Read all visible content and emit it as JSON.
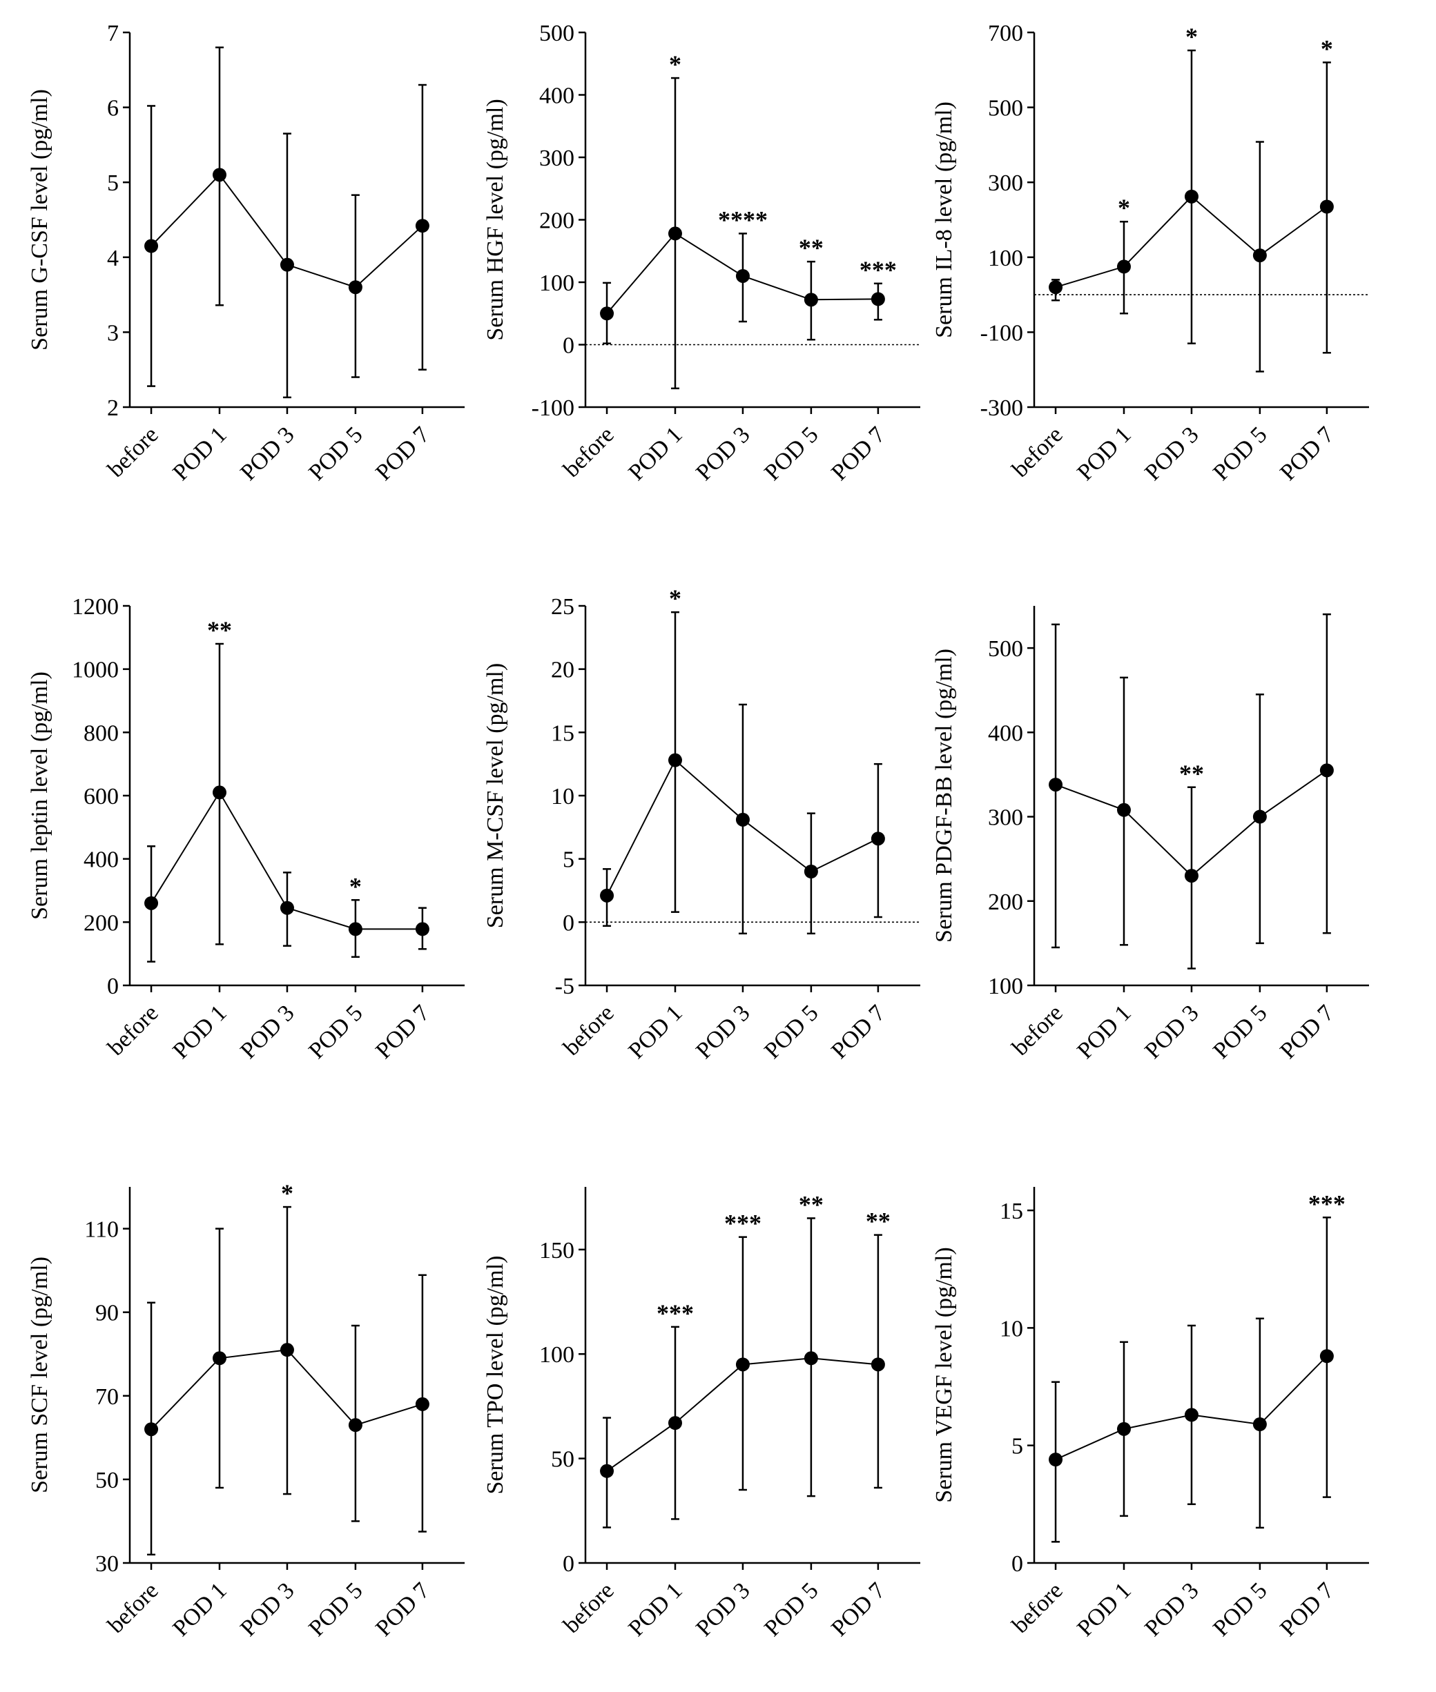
{
  "colors": {
    "ink": "#000000"
  },
  "chart_data": [
    {
      "type": "line",
      "title": "",
      "xlabel": "",
      "ylabel": "Serum G-CSF level (pg/ml)",
      "categories": [
        "before",
        "POD 1",
        "POD 3",
        "POD 5",
        "POD 7"
      ],
      "ylim": [
        2,
        7
      ],
      "yticks": [
        2,
        3,
        4,
        5,
        6,
        7
      ],
      "zero_line": false,
      "series": [
        {
          "name": "G-CSF",
          "values": [
            4.15,
            5.1,
            3.9,
            3.6,
            4.42
          ],
          "err_low": [
            2.28,
            3.36,
            2.13,
            2.4,
            2.5
          ],
          "err_high": [
            6.02,
            6.8,
            5.65,
            4.83,
            6.3
          ],
          "significance": [
            "",
            "",
            "",
            "",
            ""
          ]
        }
      ]
    },
    {
      "type": "line",
      "title": "",
      "xlabel": "",
      "ylabel": "Serum HGF level (pg/ml)",
      "categories": [
        "before",
        "POD 1",
        "POD 3",
        "POD 5",
        "POD 7"
      ],
      "ylim": [
        -100,
        500
      ],
      "yticks": [
        -100,
        0,
        100,
        200,
        300,
        400,
        500
      ],
      "zero_line": true,
      "series": [
        {
          "name": "HGF",
          "values": [
            50,
            178,
            110,
            72,
            73
          ],
          "err_low": [
            2,
            -70,
            37,
            8,
            40
          ],
          "err_high": [
            99,
            427,
            178,
            133,
            98
          ],
          "significance": [
            "",
            "*",
            "****",
            "**",
            "***"
          ]
        }
      ]
    },
    {
      "type": "line",
      "title": "",
      "xlabel": "",
      "ylabel": "Serum IL-8 level (pg/ml)",
      "categories": [
        "before",
        "POD 1",
        "POD 3",
        "POD 5",
        "POD 7"
      ],
      "ylim": [
        -300,
        700
      ],
      "yticks": [
        -300,
        -100,
        100,
        300,
        500,
        700
      ],
      "zero_line": true,
      "series": [
        {
          "name": "IL-8",
          "values": [
            20,
            75,
            262,
            105,
            235
          ],
          "err_low": [
            -15,
            -50,
            -130,
            -205,
            -155
          ],
          "err_high": [
            40,
            195,
            652,
            408,
            620
          ],
          "significance": [
            "",
            "*",
            "*",
            "",
            "*"
          ]
        }
      ]
    },
    {
      "type": "line",
      "title": "",
      "xlabel": "",
      "ylabel": "Serum leptin level (pg/ml)",
      "categories": [
        "before",
        "POD 1",
        "POD 3",
        "POD 5",
        "POD 7"
      ],
      "ylim": [
        0,
        1200
      ],
      "yticks": [
        0,
        200,
        400,
        600,
        800,
        1000,
        1200
      ],
      "zero_line": false,
      "series": [
        {
          "name": "leptin",
          "values": [
            260,
            610,
            245,
            178,
            178
          ],
          "err_low": [
            75,
            130,
            125,
            90,
            115
          ],
          "err_high": [
            440,
            1080,
            357,
            270,
            245
          ],
          "significance": [
            "",
            "**",
            "",
            "*",
            ""
          ]
        }
      ]
    },
    {
      "type": "line",
      "title": "",
      "xlabel": "",
      "ylabel": "Serum M-CSF level (pg/ml)",
      "categories": [
        "before",
        "POD 1",
        "POD 3",
        "POD 5",
        "POD 7"
      ],
      "ylim": [
        -5,
        25
      ],
      "yticks": [
        -5,
        0,
        5,
        10,
        15,
        20,
        25
      ],
      "zero_line": true,
      "series": [
        {
          "name": "M-CSF",
          "values": [
            2.1,
            12.8,
            8.1,
            4.0,
            6.6
          ],
          "err_low": [
            -0.3,
            0.8,
            -0.9,
            -0.9,
            0.4
          ],
          "err_high": [
            4.2,
            24.5,
            17.2,
            8.6,
            12.5
          ],
          "significance": [
            "",
            "*",
            "",
            "",
            ""
          ]
        }
      ]
    },
    {
      "type": "line",
      "title": "",
      "xlabel": "",
      "ylabel": "Serum PDGF-BB level (pg/ml)",
      "categories": [
        "before",
        "POD 1",
        "POD 3",
        "POD 5",
        "POD 7"
      ],
      "ylim": [
        100,
        550
      ],
      "yticks": [
        100,
        200,
        300,
        400,
        500
      ],
      "zero_line": false,
      "series": [
        {
          "name": "PDGF-BB",
          "values": [
            338,
            308,
            230,
            300,
            355
          ],
          "err_low": [
            145,
            148,
            120,
            150,
            162
          ],
          "err_high": [
            528,
            465,
            335,
            445,
            540
          ],
          "significance": [
            "",
            "",
            "**",
            "",
            ""
          ]
        }
      ]
    },
    {
      "type": "line",
      "title": "",
      "xlabel": "",
      "ylabel": "Serum SCF level (pg/ml)",
      "categories": [
        "before",
        "POD 1",
        "POD 3",
        "POD 5",
        "POD 7"
      ],
      "ylim": [
        30,
        120
      ],
      "yticks": [
        30,
        50,
        70,
        90,
        110
      ],
      "zero_line": false,
      "series": [
        {
          "name": "SCF",
          "values": [
            62,
            79,
            81,
            63,
            68
          ],
          "err_low": [
            32,
            48,
            46.5,
            40,
            37.5
          ],
          "err_high": [
            92.3,
            110,
            115.2,
            86.8,
            98.9
          ],
          "significance": [
            "",
            "",
            "*",
            "",
            ""
          ]
        }
      ]
    },
    {
      "type": "line",
      "title": "",
      "xlabel": "",
      "ylabel": "Serum TPO level (pg/ml)",
      "categories": [
        "before",
        "POD 1",
        "POD 3",
        "POD 5",
        "POD 7"
      ],
      "ylim": [
        0,
        180
      ],
      "yticks": [
        0,
        50,
        100,
        150
      ],
      "zero_line": false,
      "series": [
        {
          "name": "TPO",
          "values": [
            44,
            67,
            95,
            98,
            95
          ],
          "err_low": [
            17,
            21,
            35,
            32,
            36
          ],
          "err_high": [
            69.5,
            113,
            156,
            165,
            157
          ],
          "significance": [
            "",
            "***",
            "***",
            "**",
            "**"
          ]
        }
      ]
    },
    {
      "type": "line",
      "title": "",
      "xlabel": "",
      "ylabel": "Serum VEGF level (pg/ml)",
      "categories": [
        "before",
        "POD 1",
        "POD 3",
        "POD 5",
        "POD 7"
      ],
      "ylim": [
        0,
        16
      ],
      "yticks": [
        0,
        5,
        10,
        15
      ],
      "zero_line": false,
      "series": [
        {
          "name": "VEGF",
          "values": [
            4.4,
            5.7,
            6.3,
            5.9,
            8.8
          ],
          "err_low": [
            0.9,
            2.0,
            2.5,
            1.5,
            2.8
          ],
          "err_high": [
            7.7,
            9.4,
            10.1,
            10.4,
            14.7
          ],
          "significance": [
            "",
            "",
            "",
            "",
            "***"
          ]
        }
      ]
    }
  ]
}
